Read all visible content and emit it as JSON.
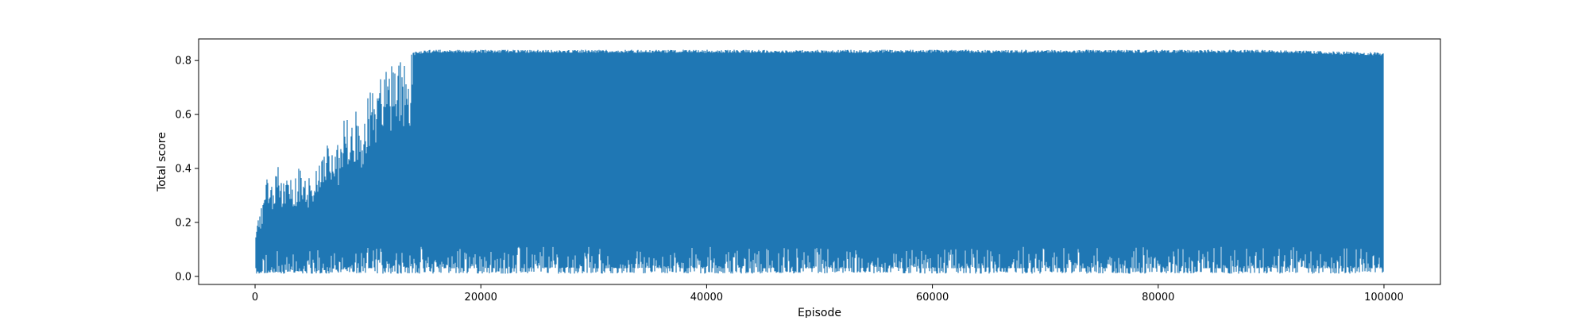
{
  "chart_data": {
    "type": "line",
    "title": "",
    "xlabel": "Episode",
    "ylabel": "Total score",
    "xlim": [
      -5000,
      105000
    ],
    "ylim": [
      -0.03,
      0.88
    ],
    "xticks": [
      0,
      20000,
      40000,
      60000,
      80000,
      100000
    ],
    "xtick_labels": [
      "0",
      "20000",
      "40000",
      "60000",
      "80000",
      "100000"
    ],
    "yticks": [
      0.0,
      0.2,
      0.4,
      0.6,
      0.8
    ],
    "ytick_labels": [
      "0.0",
      "0.2",
      "0.4",
      "0.6",
      "0.8"
    ],
    "grid": false,
    "legend": "none",
    "series": [
      {
        "color": "#1f77b4",
        "x_range": [
          0,
          100000
        ],
        "upper_envelope": {
          "x": [
            0,
            200,
            500,
            1000,
            1500,
            2000,
            2500,
            3000,
            3500,
            4000,
            4500,
            5000,
            5500,
            6000,
            6500,
            7000,
            7500,
            8000,
            8500,
            9000,
            9500,
            10000,
            10500,
            11000,
            11500,
            12000,
            12500,
            13000,
            13500,
            14000,
            15000,
            16000,
            20000,
            30000,
            40000,
            50000,
            60000,
            70000,
            80000,
            90000,
            100000
          ],
          "y": [
            0.11,
            0.26,
            0.25,
            0.4,
            0.33,
            0.46,
            0.36,
            0.37,
            0.38,
            0.41,
            0.35,
            0.42,
            0.39,
            0.45,
            0.51,
            0.45,
            0.51,
            0.6,
            0.58,
            0.62,
            0.6,
            0.7,
            0.69,
            0.73,
            0.76,
            0.78,
            0.79,
            0.82,
            0.82,
            0.83,
            0.84,
            0.84,
            0.84,
            0.84,
            0.84,
            0.84,
            0.84,
            0.84,
            0.84,
            0.84,
            0.83
          ]
        },
        "lower_envelope": {
          "x": [
            0,
            5000,
            10000,
            15000,
            20000,
            30000,
            40000,
            50000,
            60000,
            70000,
            80000,
            90000,
            100000
          ],
          "y": [
            0.01,
            0.01,
            0.01,
            0.01,
            0.01,
            0.01,
            0.01,
            0.01,
            0.01,
            0.01,
            0.01,
            0.01,
            0.01
          ]
        },
        "typical_min": {
          "x": [
            0,
            5000,
            10000,
            15000,
            20000,
            40000,
            60000,
            80000,
            100000
          ],
          "y": [
            0.01,
            0.02,
            0.03,
            0.03,
            0.03,
            0.03,
            0.03,
            0.03,
            0.03
          ]
        }
      }
    ]
  }
}
